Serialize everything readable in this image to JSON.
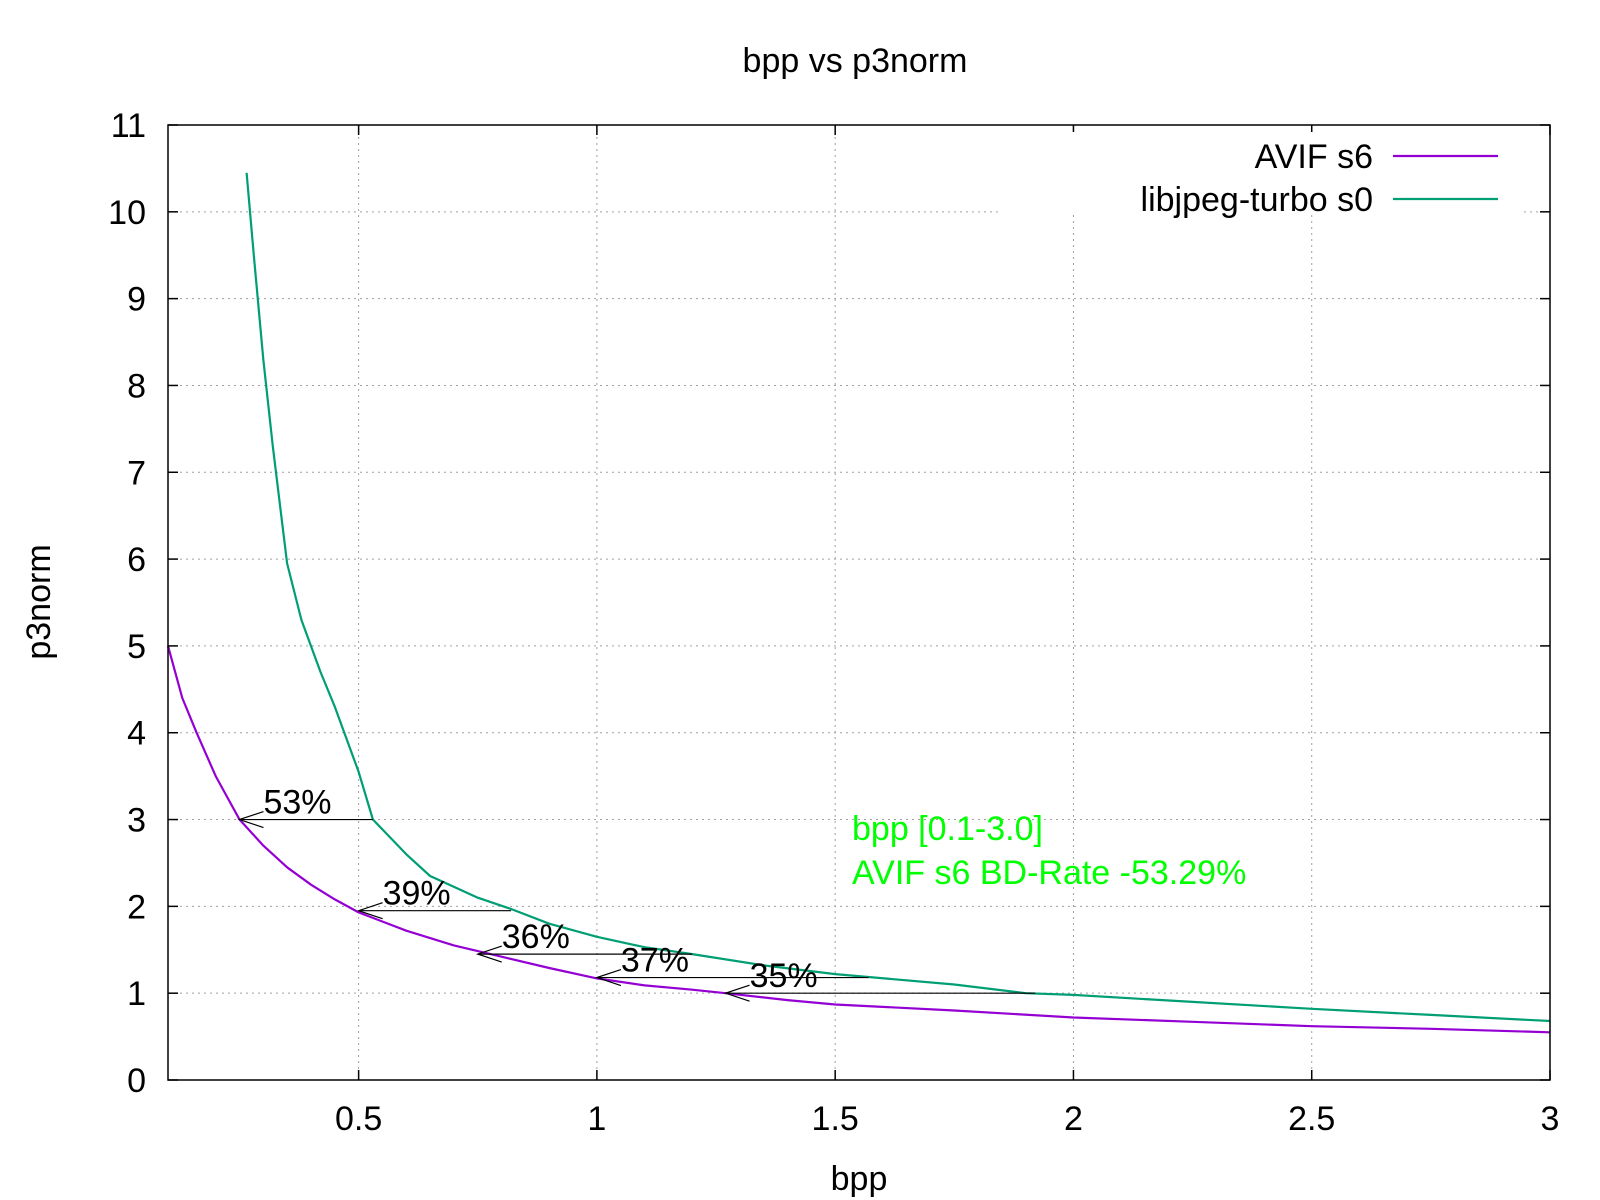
{
  "chart_data": {
    "type": "line",
    "title": "bpp vs p3norm",
    "xlabel": "bpp",
    "ylabel": "p3norm",
    "xlim": [
      0.1,
      3.0
    ],
    "ylim": [
      0,
      11
    ],
    "grid": true,
    "legend_position": "top-right",
    "x_ticks": [
      0.5,
      1,
      1.5,
      2,
      2.5,
      3
    ],
    "x_tick_labels": [
      "0.5",
      "1",
      "1.5",
      "2",
      "2.5",
      "3"
    ],
    "y_ticks": [
      0,
      1,
      2,
      3,
      4,
      5,
      6,
      7,
      8,
      9,
      10,
      11
    ],
    "y_tick_labels": [
      "0",
      "1",
      "2",
      "3",
      "4",
      "5",
      "6",
      "7",
      "8",
      "9",
      "10",
      "11"
    ],
    "series": [
      {
        "name": "AVIF s6",
        "color": "#9400d3",
        "points": [
          [
            0.1,
            5.0
          ],
          [
            0.13,
            4.4
          ],
          [
            0.16,
            4.0
          ],
          [
            0.2,
            3.5
          ],
          [
            0.25,
            3.0
          ],
          [
            0.3,
            2.7
          ],
          [
            0.35,
            2.45
          ],
          [
            0.4,
            2.25
          ],
          [
            0.45,
            2.08
          ],
          [
            0.5,
            1.93
          ],
          [
            0.6,
            1.72
          ],
          [
            0.7,
            1.55
          ],
          [
            0.8,
            1.42
          ],
          [
            0.9,
            1.29
          ],
          [
            1.0,
            1.17
          ],
          [
            1.1,
            1.09
          ],
          [
            1.2,
            1.04
          ],
          [
            1.27,
            1.0
          ],
          [
            1.4,
            0.92
          ],
          [
            1.5,
            0.87
          ],
          [
            1.75,
            0.8
          ],
          [
            2.0,
            0.72
          ],
          [
            2.25,
            0.67
          ],
          [
            2.5,
            0.62
          ],
          [
            2.75,
            0.59
          ],
          [
            3.0,
            0.55
          ]
        ]
      },
      {
        "name": "libjpeg-turbo s0",
        "color": "#009e73",
        "points": [
          [
            0.265,
            10.45
          ],
          [
            0.28,
            9.5
          ],
          [
            0.3,
            8.3
          ],
          [
            0.32,
            7.3
          ],
          [
            0.35,
            5.95
          ],
          [
            0.38,
            5.3
          ],
          [
            0.42,
            4.7
          ],
          [
            0.45,
            4.3
          ],
          [
            0.5,
            3.55
          ],
          [
            0.53,
            3.0
          ],
          [
            0.6,
            2.6
          ],
          [
            0.65,
            2.35
          ],
          [
            0.75,
            2.1
          ],
          [
            0.82,
            1.97
          ],
          [
            0.9,
            1.8
          ],
          [
            1.0,
            1.65
          ],
          [
            1.1,
            1.53
          ],
          [
            1.2,
            1.45
          ],
          [
            1.35,
            1.32
          ],
          [
            1.5,
            1.22
          ],
          [
            1.75,
            1.1
          ],
          [
            1.9,
            1.0
          ],
          [
            2.0,
            0.98
          ],
          [
            2.25,
            0.9
          ],
          [
            2.5,
            0.82
          ],
          [
            2.75,
            0.75
          ],
          [
            3.0,
            0.68
          ]
        ]
      }
    ],
    "annotations": [
      {
        "label": "53%",
        "y": 3.0,
        "x_from": 0.53,
        "x_to": 0.25
      },
      {
        "label": "39%",
        "y": 1.95,
        "x_from": 0.82,
        "x_to": 0.5
      },
      {
        "label": "36%",
        "y": 1.45,
        "x_from": 1.2,
        "x_to": 0.75
      },
      {
        "label": "37%",
        "y": 1.18,
        "x_from": 1.57,
        "x_to": 1.0
      },
      {
        "label": "35%",
        "y": 1.0,
        "x_from": 1.92,
        "x_to": 1.27
      }
    ],
    "bd_rate_text": [
      "bpp [0.1-3.0]",
      "AVIF s6 BD-Rate -53.29%"
    ],
    "bd_rate_color": "#00ff00"
  }
}
